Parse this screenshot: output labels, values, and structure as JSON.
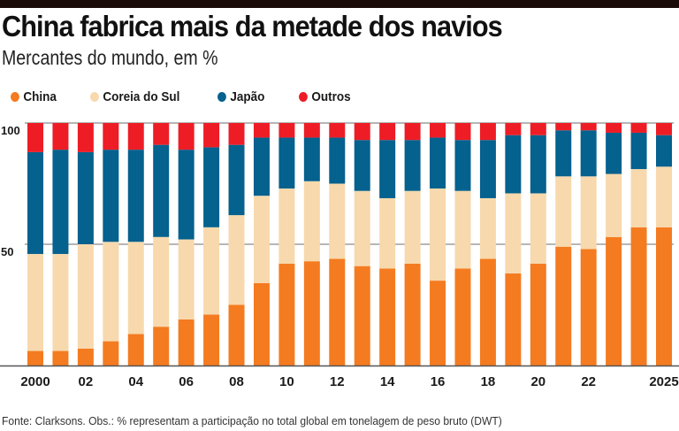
{
  "header": {
    "title": "China fabrica mais da metade dos navios",
    "subtitle": "Mercantes do mundo, em %"
  },
  "legend": [
    {
      "label": "China",
      "color": "#f47b20"
    },
    {
      "label": "Coreia do Sul",
      "color": "#f7d9ad"
    },
    {
      "label": "Japão",
      "color": "#05618e"
    },
    {
      "label": "Outros",
      "color": "#ee1c25"
    }
  ],
  "footer": "Fonte: Clarksons. Obs.: % representam a participação no total global em tonelagem de peso bruto (DWT)",
  "chart_data": {
    "type": "bar",
    "stacked": true,
    "title": "China fabrica mais da metade dos navios",
    "subtitle": "Mercantes do mundo, em %",
    "xlabel": "",
    "ylabel": "%",
    "ylim": [
      0,
      100
    ],
    "yticks": [
      50,
      100
    ],
    "ytick_labels": [
      "50",
      "100"
    ],
    "grid": "horizontal at 50 and 100",
    "legend_position": "top-left",
    "categories": [
      "2000",
      "2001",
      "2002",
      "2003",
      "2004",
      "2005",
      "2006",
      "2007",
      "2008",
      "2009",
      "2010",
      "2011",
      "2012",
      "2013",
      "2014",
      "2015",
      "2016",
      "2017",
      "2018",
      "2019",
      "2020",
      "2021",
      "2022",
      "2023",
      "2024",
      "2025"
    ],
    "xtick_labels": [
      "2000",
      "",
      "02",
      "",
      "04",
      "",
      "06",
      "",
      "08",
      "",
      "10",
      "",
      "12",
      "",
      "14",
      "",
      "16",
      "",
      "18",
      "",
      "20",
      "",
      "22",
      "",
      "",
      "2025"
    ],
    "series": [
      {
        "name": "China",
        "color": "#f47b20",
        "values": [
          6,
          6,
          7,
          10,
          13,
          16,
          19,
          21,
          25,
          34,
          42,
          43,
          44,
          41,
          40,
          42,
          35,
          40,
          44,
          38,
          42,
          49,
          48,
          53,
          57,
          57
        ]
      },
      {
        "name": "Coreia do Sul",
        "color": "#f7d9ad",
        "values": [
          40,
          40,
          43,
          41,
          38,
          37,
          33,
          36,
          37,
          36,
          31,
          33,
          31,
          31,
          29,
          30,
          38,
          32,
          25,
          33,
          29,
          29,
          30,
          26,
          24,
          25
        ]
      },
      {
        "name": "Japão",
        "color": "#05618e",
        "values": [
          42,
          43,
          38,
          38,
          38,
          38,
          37,
          33,
          29,
          24,
          21,
          18,
          19,
          21,
          24,
          21,
          21,
          21,
          24,
          24,
          24,
          19,
          19,
          17,
          15,
          13
        ]
      },
      {
        "name": "Outros",
        "color": "#ee1c25",
        "values": [
          12,
          11,
          12,
          11,
          11,
          9,
          11,
          10,
          9,
          6,
          6,
          6,
          6,
          7,
          7,
          7,
          6,
          7,
          7,
          5,
          5,
          3,
          3,
          4,
          4,
          5
        ]
      }
    ]
  }
}
